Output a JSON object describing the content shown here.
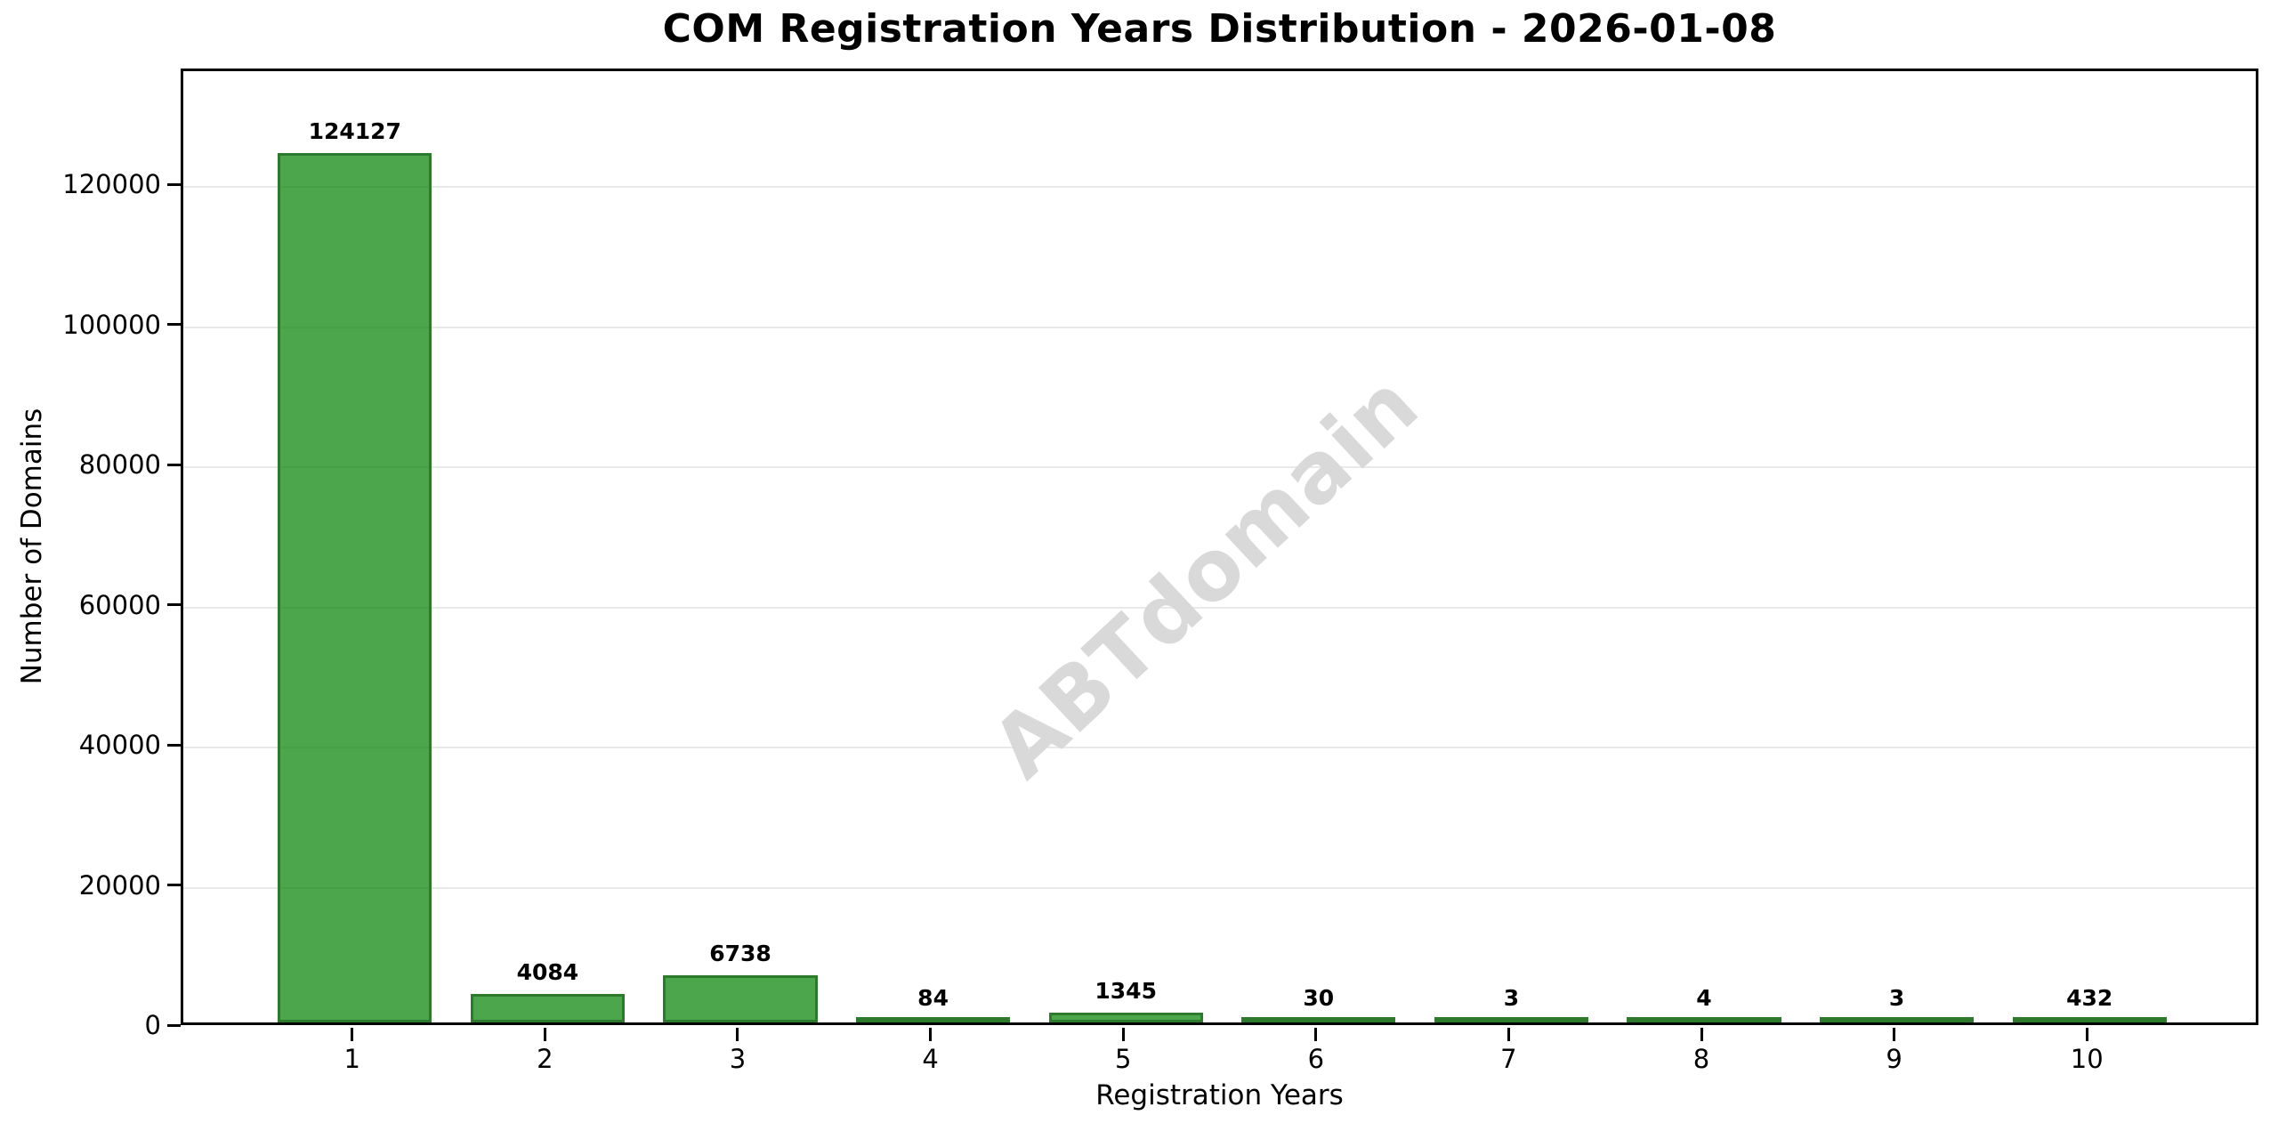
{
  "chart_data": {
    "type": "bar",
    "title": "COM Registration Years Distribution - 2026-01-08",
    "xlabel": "Registration Years",
    "ylabel": "Number of Domains",
    "categories": [
      "1",
      "2",
      "3",
      "4",
      "5",
      "6",
      "7",
      "8",
      "9",
      "10"
    ],
    "values": [
      124127,
      4084,
      6738,
      84,
      1345,
      30,
      3,
      4,
      3,
      432
    ],
    "bar_labels": [
      "124127",
      "4084",
      "6738",
      "84",
      "1345",
      "30",
      "3",
      "4",
      "3",
      "432"
    ],
    "yticks": [
      0,
      20000,
      40000,
      60000,
      80000,
      100000,
      120000
    ],
    "ylim": [
      0,
      136540
    ],
    "bar_width_fraction": 0.8,
    "grid": true,
    "legend_position": "none",
    "watermark": "ABTdomain",
    "colors": {
      "bar_fill": "rgba(0,128,0,0.7)",
      "bar_fill_hex": "#4ca64c",
      "bar_edge": "#2d7a2d",
      "gridline": "#e9e9e9",
      "axis": "#000000",
      "text": "#000000",
      "watermark": "#d9d9d9"
    }
  }
}
